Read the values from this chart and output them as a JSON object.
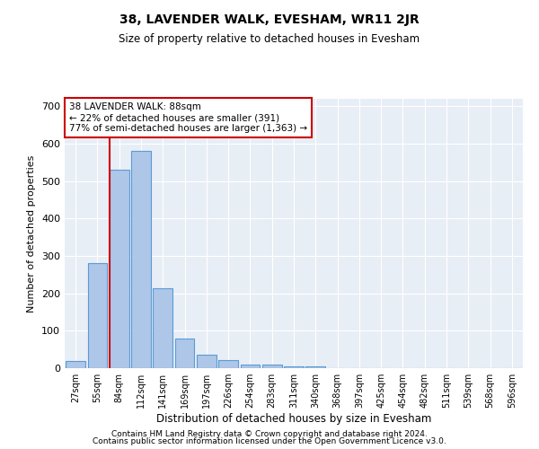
{
  "title": "38, LAVENDER WALK, EVESHAM, WR11 2JR",
  "subtitle": "Size of property relative to detached houses in Evesham",
  "xlabel": "Distribution of detached houses by size in Evesham",
  "ylabel": "Number of detached properties",
  "categories": [
    "27sqm",
    "55sqm",
    "84sqm",
    "112sqm",
    "141sqm",
    "169sqm",
    "197sqm",
    "226sqm",
    "254sqm",
    "283sqm",
    "311sqm",
    "340sqm",
    "368sqm",
    "397sqm",
    "425sqm",
    "454sqm",
    "482sqm",
    "511sqm",
    "539sqm",
    "568sqm",
    "596sqm"
  ],
  "values": [
    20,
    280,
    530,
    580,
    213,
    80,
    37,
    22,
    10,
    10,
    5,
    5,
    0,
    0,
    0,
    0,
    0,
    0,
    0,
    0,
    0
  ],
  "bar_color": "#aec6e8",
  "bar_edge_color": "#5b9bd5",
  "red_line_color": "#cc0000",
  "annotation_line1": "38 LAVENDER WALK: 88sqm",
  "annotation_line2": "← 22% of detached houses are smaller (391)",
  "annotation_line3": "77% of semi-detached houses are larger (1,363) →",
  "annotation_box_color": "#ffffff",
  "annotation_box_edge": "#cc0000",
  "ylim": [
    0,
    720
  ],
  "yticks": [
    0,
    100,
    200,
    300,
    400,
    500,
    600,
    700
  ],
  "bg_color": "#e8eef5",
  "footer1": "Contains HM Land Registry data © Crown copyright and database right 2024.",
  "footer2": "Contains public sector information licensed under the Open Government Licence v3.0."
}
